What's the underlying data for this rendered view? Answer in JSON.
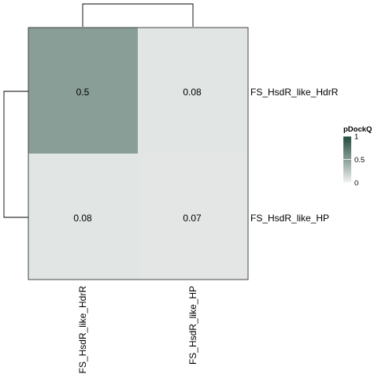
{
  "chart_data": {
    "type": "heatmap",
    "rows": [
      "FS_HsdR_like_HdrR",
      "FS_HsdR_like_HP"
    ],
    "columns": [
      "FS_HsdR_like_HdrR",
      "FS_HsdR_like_HP"
    ],
    "values": [
      [
        0.5,
        0.08
      ],
      [
        0.08,
        0.07
      ]
    ],
    "cell_labels": [
      [
        "0.5",
        "0.08"
      ],
      [
        "0.08",
        "0.07"
      ]
    ],
    "legend": {
      "title": "pDockQ",
      "ticks": [
        {
          "value": 0,
          "label": "0"
        },
        {
          "value": 0.5,
          "label": "0.5"
        },
        {
          "value": 1,
          "label": "1"
        }
      ],
      "range": [
        0,
        1
      ],
      "placement": "right",
      "color_low": "#f2f2f2",
      "color_high": "#1f4a3c"
    },
    "dendrograms": {
      "rows": true,
      "columns": true
    },
    "grid": false
  }
}
